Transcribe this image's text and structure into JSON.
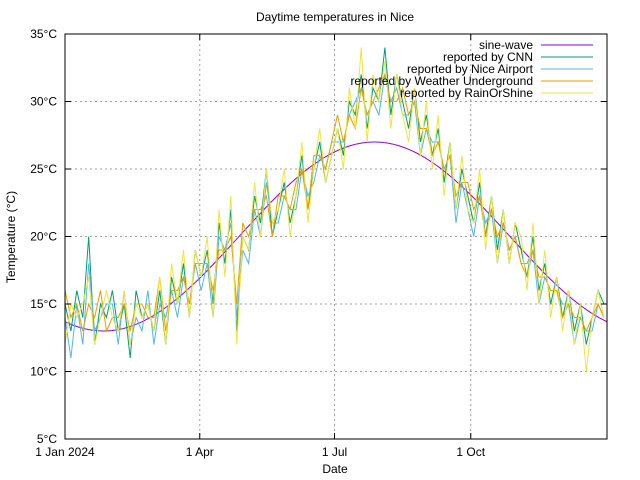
{
  "chart_data": {
    "type": "line",
    "title": "Daytime temperatures in Nice",
    "xlabel": "Date",
    "ylabel": "Temperature (°C)",
    "xlim": [
      "2024-01-01",
      "2024-12-31"
    ],
    "ylim": [
      5,
      35
    ],
    "grid": true,
    "legend_position": "top-right",
    "x_ticks": [
      {
        "date": "2024-01-01",
        "label": "1 Jan 2024"
      },
      {
        "date": "2024-04-01",
        "label": "1 Apr"
      },
      {
        "date": "2024-07-01",
        "label": "1 Jul"
      },
      {
        "date": "2024-10-01",
        "label": "1 Oct"
      }
    ],
    "y_ticks": [
      {
        "value": 5,
        "label": "5°C"
      },
      {
        "value": 10,
        "label": "10°C"
      },
      {
        "value": 15,
        "label": "15°C"
      },
      {
        "value": 20,
        "label": "20°C"
      },
      {
        "value": 25,
        "label": "25°C"
      },
      {
        "value": 30,
        "label": "30°C"
      },
      {
        "value": 35,
        "label": "35°C"
      }
    ],
    "sine_wave": {
      "name": "sine-wave",
      "color": "#9400d3",
      "mean": 20,
      "amplitude": 7,
      "peak_date": "2024-07-28",
      "period_days": 366
    },
    "x": [
      "2024-01-01",
      "2024-01-05",
      "2024-01-09",
      "2024-01-13",
      "2024-01-17",
      "2024-01-21",
      "2024-01-25",
      "2024-01-29",
      "2024-02-02",
      "2024-02-06",
      "2024-02-10",
      "2024-02-14",
      "2024-02-18",
      "2024-02-22",
      "2024-02-26",
      "2024-03-01",
      "2024-03-05",
      "2024-03-09",
      "2024-03-13",
      "2024-03-17",
      "2024-03-21",
      "2024-03-25",
      "2024-03-29",
      "2024-04-02",
      "2024-04-06",
      "2024-04-10",
      "2024-04-14",
      "2024-04-18",
      "2024-04-22",
      "2024-04-26",
      "2024-04-30",
      "2024-05-04",
      "2024-05-08",
      "2024-05-12",
      "2024-05-16",
      "2024-05-20",
      "2024-05-24",
      "2024-05-28",
      "2024-06-01",
      "2024-06-05",
      "2024-06-09",
      "2024-06-13",
      "2024-06-17",
      "2024-06-21",
      "2024-06-25",
      "2024-06-29",
      "2024-07-03",
      "2024-07-07",
      "2024-07-11",
      "2024-07-15",
      "2024-07-19",
      "2024-07-23",
      "2024-07-27",
      "2024-07-31",
      "2024-08-04",
      "2024-08-08",
      "2024-08-12",
      "2024-08-16",
      "2024-08-20",
      "2024-08-24",
      "2024-08-28",
      "2024-09-01",
      "2024-09-05",
      "2024-09-09",
      "2024-09-13",
      "2024-09-17",
      "2024-09-21",
      "2024-09-25",
      "2024-09-29",
      "2024-10-03",
      "2024-10-07",
      "2024-10-11",
      "2024-10-15",
      "2024-10-19",
      "2024-10-23",
      "2024-10-27",
      "2024-10-31",
      "2024-11-04",
      "2024-11-08",
      "2024-11-12",
      "2024-11-16",
      "2024-11-20",
      "2024-11-24",
      "2024-11-28",
      "2024-12-02",
      "2024-12-06",
      "2024-12-10",
      "2024-12-14",
      "2024-12-18",
      "2024-12-22",
      "2024-12-26",
      "2024-12-30"
    ],
    "series": [
      {
        "name": "reported by CNN",
        "color": "#009e73",
        "values": [
          15,
          13,
          16,
          14,
          20,
          12,
          15,
          14,
          16,
          13,
          15,
          11,
          16,
          14,
          15,
          13,
          16,
          12,
          17,
          15,
          18,
          14,
          19,
          17,
          19,
          15,
          21,
          18,
          22,
          13,
          20,
          19,
          23,
          21,
          25,
          20,
          22,
          24,
          21,
          23,
          26,
          22,
          25,
          27,
          24,
          26,
          28,
          26,
          30,
          29,
          32,
          28,
          31,
          30,
          34,
          29,
          32,
          30,
          28,
          31,
          27,
          29,
          26,
          28,
          24,
          27,
          22,
          25,
          23,
          21,
          24,
          20,
          23,
          19,
          22,
          18,
          21,
          19,
          17,
          20,
          16,
          18,
          15,
          17,
          14,
          16,
          13,
          15,
          12,
          14,
          16,
          15
        ]
      },
      {
        "name": "reported by Nice Airport",
        "color": "#56b4e9",
        "values": [
          14,
          11,
          15,
          12,
          18,
          13,
          14,
          15,
          15,
          12,
          16,
          12,
          14,
          13,
          16,
          12,
          15,
          14,
          16,
          14,
          17,
          15,
          18,
          16,
          18,
          14,
          20,
          19,
          21,
          14,
          19,
          18,
          22,
          20,
          24,
          21,
          21,
          23,
          22,
          22,
          25,
          23,
          24,
          26,
          25,
          27,
          27,
          27,
          29,
          30,
          31,
          29,
          30,
          29,
          32,
          30,
          31,
          29,
          29,
          30,
          26,
          28,
          27,
          27,
          25,
          26,
          21,
          24,
          22,
          20,
          23,
          21,
          22,
          18,
          21,
          19,
          20,
          18,
          18,
          19,
          15,
          17,
          16,
          16,
          15,
          15,
          12,
          14,
          13,
          13,
          15,
          14
        ]
      },
      {
        "name": "reported by Weather Underground",
        "color": "#e69f00",
        "values": [
          16,
          14,
          15,
          13,
          15,
          14,
          16,
          13,
          14,
          14,
          15,
          13,
          15,
          15,
          14,
          14,
          17,
          13,
          16,
          16,
          17,
          15,
          18,
          18,
          18,
          16,
          19,
          19,
          20,
          15,
          21,
          20,
          22,
          22,
          23,
          20,
          23,
          23,
          22,
          24,
          25,
          22,
          26,
          26,
          25,
          27,
          29,
          27,
          29,
          28,
          31,
          29,
          30,
          31,
          32,
          30,
          30,
          31,
          29,
          30,
          28,
          28,
          26,
          27,
          25,
          26,
          23,
          24,
          24,
          22,
          23,
          20,
          22,
          20,
          21,
          19,
          20,
          18,
          17,
          19,
          17,
          17,
          16,
          16,
          14,
          15,
          14,
          14,
          13,
          14,
          15,
          14
        ]
      },
      {
        "name": "reported by RainOrShine",
        "color": "#f0e442",
        "values": [
          12,
          15,
          14,
          15,
          17,
          12,
          14,
          16,
          14,
          13,
          16,
          12,
          15,
          14,
          15,
          13,
          17,
          12,
          18,
          15,
          19,
          14,
          19,
          17,
          20,
          14,
          22,
          17,
          23,
          12,
          20,
          19,
          24,
          20,
          25,
          21,
          22,
          25,
          20,
          23,
          27,
          21,
          25,
          28,
          24,
          26,
          28,
          25,
          31,
          28,
          34,
          27,
          32,
          30,
          33,
          28,
          32,
          29,
          27,
          31,
          26,
          30,
          25,
          29,
          23,
          27,
          22,
          26,
          22,
          21,
          25,
          19,
          23,
          18,
          22,
          18,
          21,
          20,
          16,
          21,
          15,
          19,
          14,
          17,
          13,
          16,
          12,
          15,
          10,
          14,
          16,
          14
        ]
      }
    ]
  }
}
